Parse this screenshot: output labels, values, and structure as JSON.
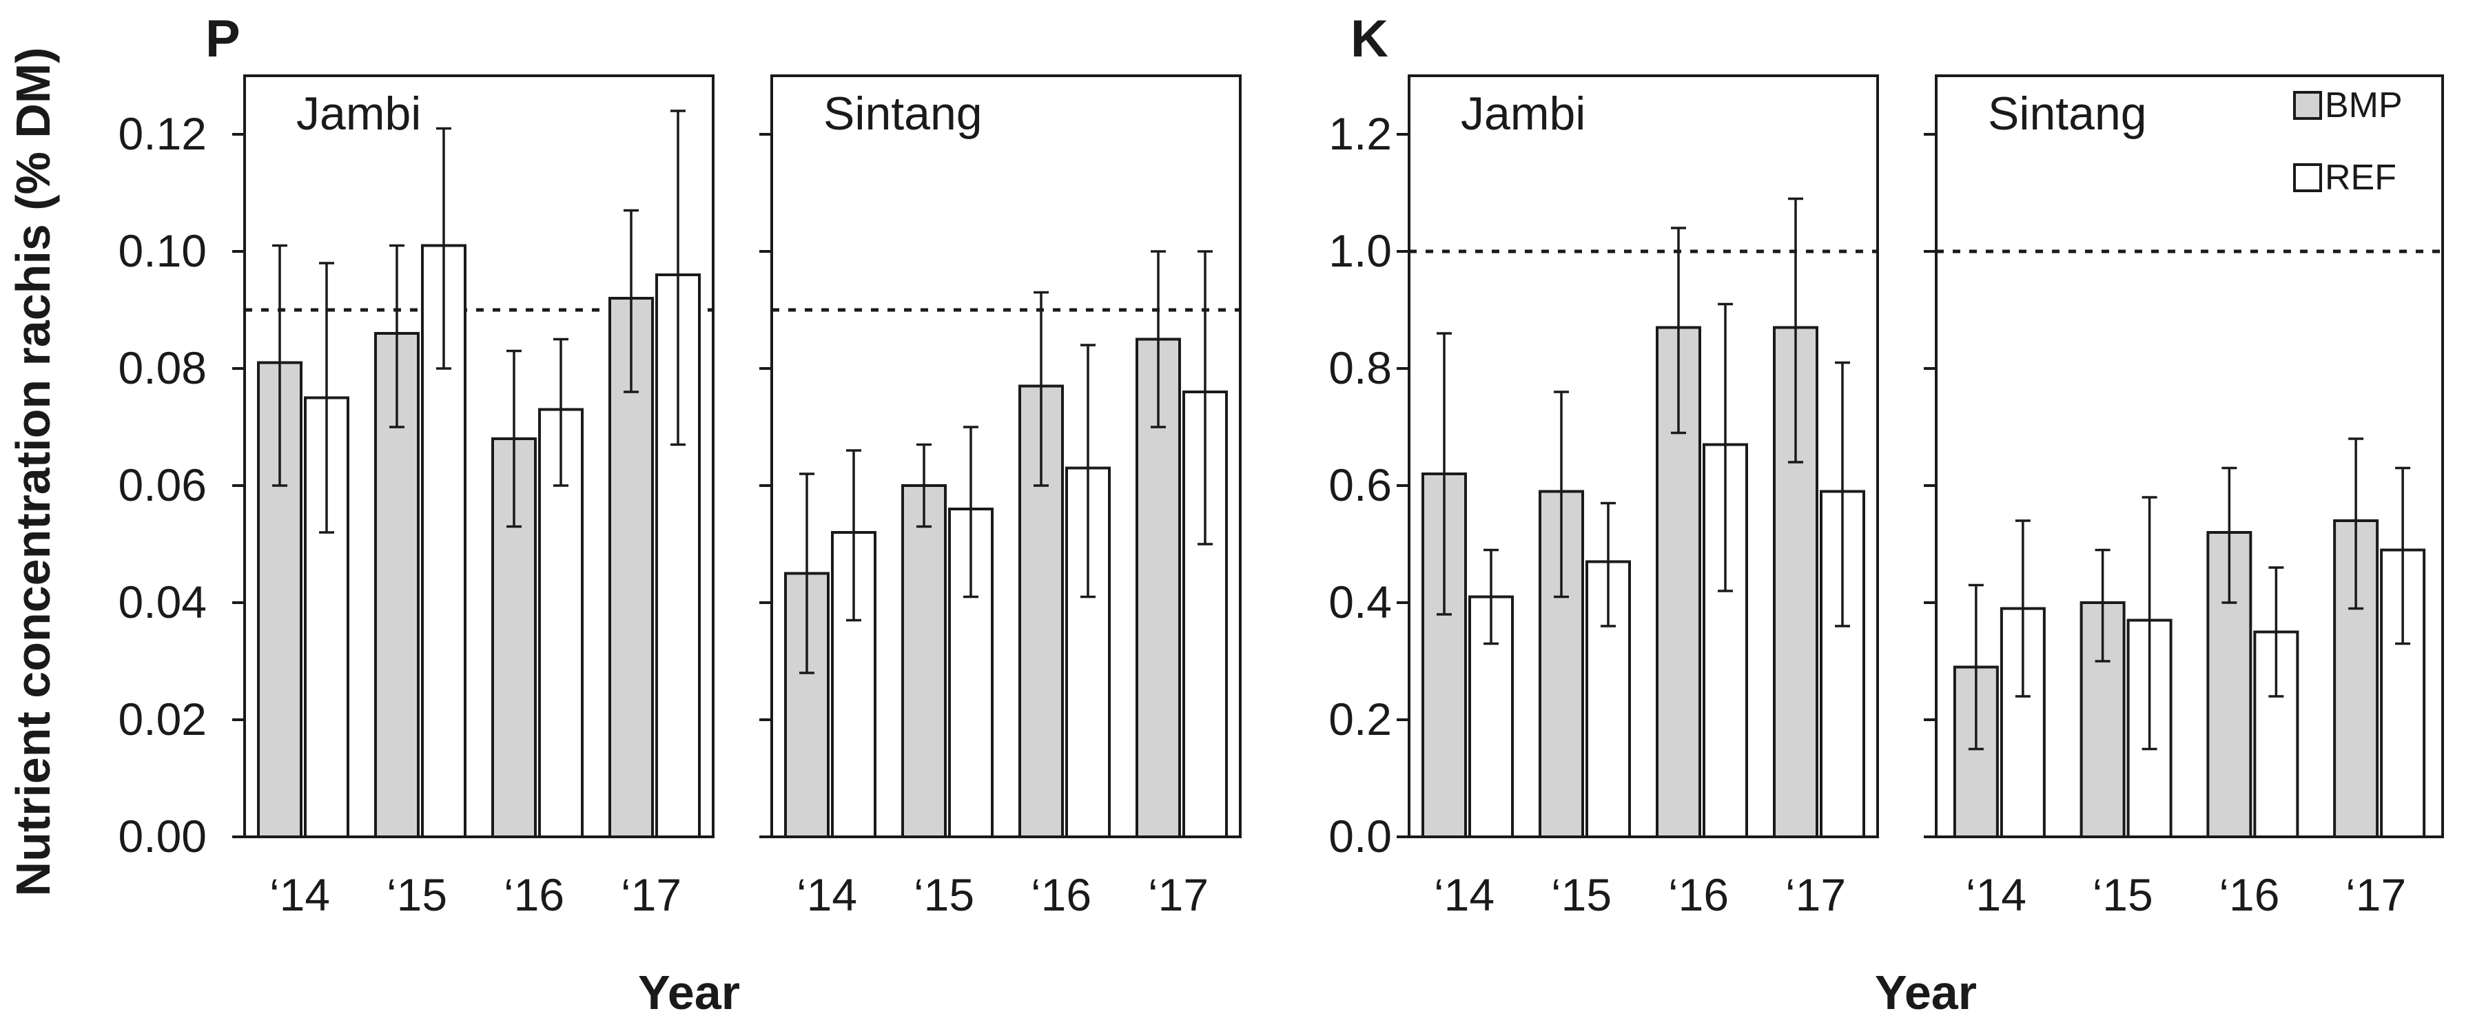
{
  "ylabel": "Nutrient concentration rachis (% DM)",
  "xlabel": "Year",
  "legend": [
    {
      "key": "BMP",
      "label": "BMP",
      "fill": "#d3d3d3"
    },
    {
      "key": "REF",
      "label": "REF",
      "fill": "#ffffff"
    }
  ],
  "chart_data": [
    {
      "type": "bar",
      "title": "P",
      "xlabel": "Year",
      "ylabel": "Nutrient concentration rachis (% DM)",
      "ylim": [
        0,
        0.13
      ],
      "yticks": [
        0.0,
        0.02,
        0.04,
        0.06,
        0.08,
        0.1,
        0.12
      ],
      "ytick_labels": [
        "0.00",
        "0.02",
        "0.04",
        "0.06",
        "0.08",
        "0.10",
        "0.12"
      ],
      "panels": [
        {
          "name": "Jambi",
          "categories": [
            "‘14",
            "‘15",
            "‘16",
            "‘17"
          ],
          "reference_line": 0.09,
          "series": [
            {
              "name": "BMP",
              "values": [
                0.081,
                0.086,
                0.068,
                0.092
              ],
              "err_low": [
                0.06,
                0.07,
                0.053,
                0.076
              ],
              "err_high": [
                0.101,
                0.101,
                0.083,
                0.107
              ]
            },
            {
              "name": "REF",
              "values": [
                0.075,
                0.101,
                0.073,
                0.096
              ],
              "err_low": [
                0.052,
                0.08,
                0.06,
                0.067
              ],
              "err_high": [
                0.098,
                0.121,
                0.085,
                0.124
              ]
            }
          ]
        },
        {
          "name": "Sintang",
          "categories": [
            "‘14",
            "‘15",
            "‘16",
            "‘17"
          ],
          "reference_line": 0.09,
          "series": [
            {
              "name": "BMP",
              "values": [
                0.045,
                0.06,
                0.077,
                0.085
              ],
              "err_low": [
                0.028,
                0.053,
                0.06,
                0.07
              ],
              "err_high": [
                0.062,
                0.067,
                0.093,
                0.1
              ]
            },
            {
              "name": "REF",
              "values": [
                0.052,
                0.056,
                0.063,
                0.076
              ],
              "err_low": [
                0.037,
                0.041,
                0.041,
                0.05
              ],
              "err_high": [
                0.066,
                0.07,
                0.084,
                0.1
              ]
            }
          ]
        }
      ]
    },
    {
      "type": "bar",
      "title": "K",
      "xlabel": "Year",
      "ylabel": "Nutrient concentration rachis (% DM)",
      "ylim": [
        0,
        1.3
      ],
      "yticks": [
        0.0,
        0.2,
        0.4,
        0.6,
        0.8,
        1.0,
        1.2
      ],
      "ytick_labels": [
        "0.0",
        "0.2",
        "0.4",
        "0.6",
        "0.8",
        "1.0",
        "1.2"
      ],
      "panels": [
        {
          "name": "Jambi",
          "categories": [
            "‘14",
            "‘15",
            "‘16",
            "‘17"
          ],
          "reference_line": 1.0,
          "series": [
            {
              "name": "BMP",
              "values": [
                0.62,
                0.59,
                0.87,
                0.87
              ],
              "err_low": [
                0.38,
                0.41,
                0.69,
                0.64
              ],
              "err_high": [
                0.86,
                0.76,
                1.04,
                1.09
              ]
            },
            {
              "name": "REF",
              "values": [
                0.41,
                0.47,
                0.67,
                0.59
              ],
              "err_low": [
                0.33,
                0.36,
                0.42,
                0.36
              ],
              "err_high": [
                0.49,
                0.57,
                0.91,
                0.81
              ]
            }
          ]
        },
        {
          "name": "Sintang",
          "categories": [
            "‘14",
            "‘15",
            "‘16",
            "‘17"
          ],
          "reference_line": 1.0,
          "series": [
            {
              "name": "BMP",
              "values": [
                0.29,
                0.4,
                0.52,
                0.54
              ],
              "err_low": [
                0.15,
                0.3,
                0.4,
                0.39
              ],
              "err_high": [
                0.43,
                0.49,
                0.63,
                0.68
              ]
            },
            {
              "name": "REF",
              "values": [
                0.39,
                0.37,
                0.35,
                0.49
              ],
              "err_low": [
                0.24,
                0.15,
                0.24,
                0.33
              ],
              "err_high": [
                0.54,
                0.58,
                0.46,
                0.63
              ]
            }
          ]
        }
      ]
    }
  ]
}
